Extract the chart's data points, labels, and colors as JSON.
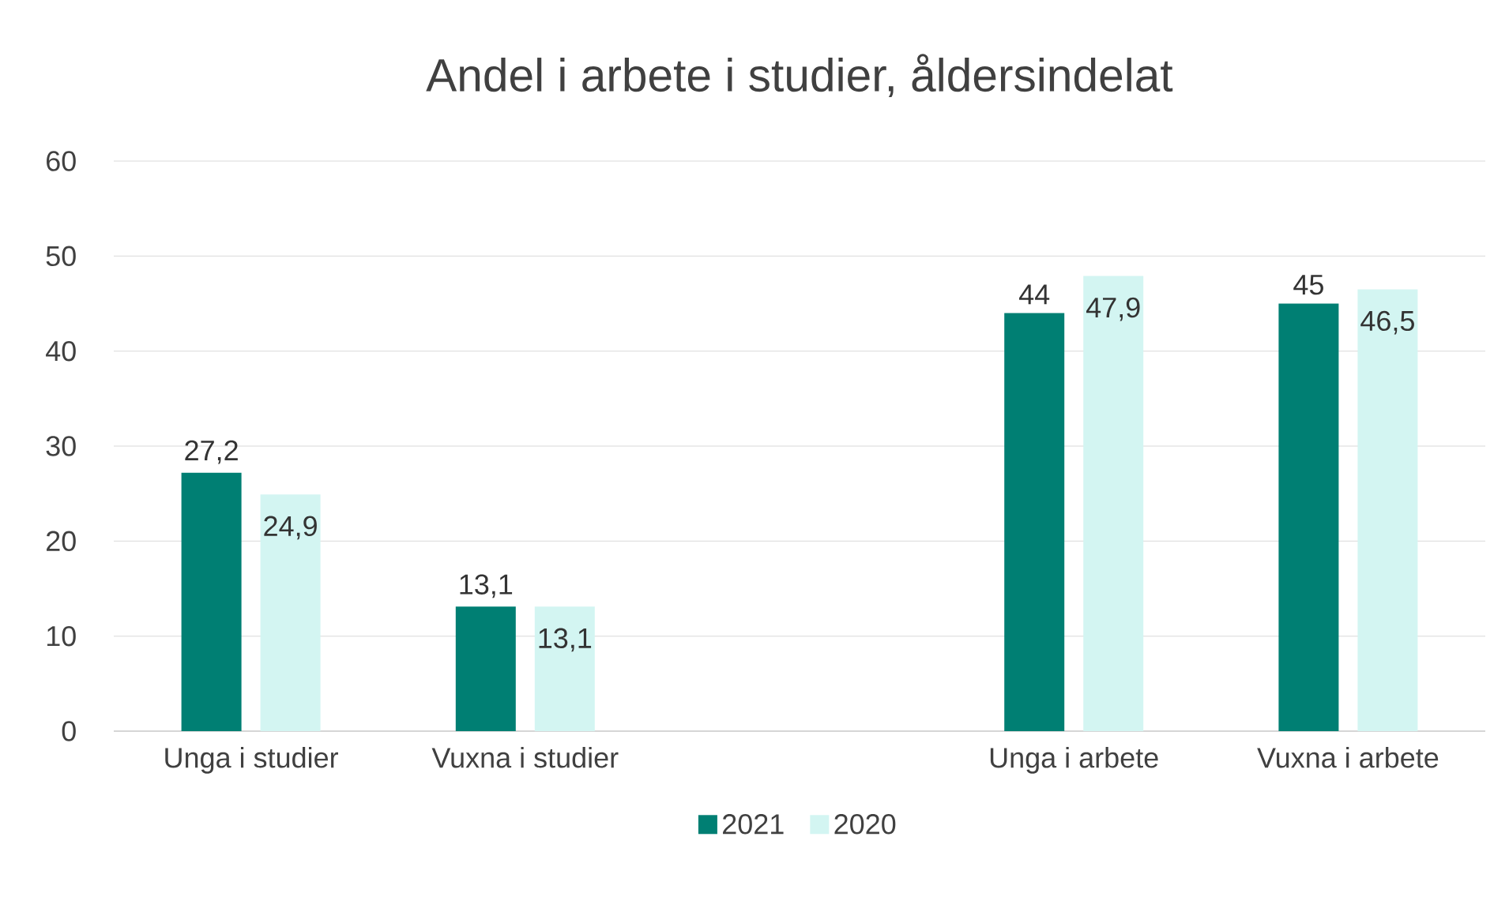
{
  "chart_data": {
    "type": "bar",
    "title": "Andel i arbete i studier, åldersindelat",
    "categories": [
      "Unga i studier",
      "Vuxna i studier",
      null,
      "Unga i arbete",
      "Vuxna i arbete"
    ],
    "series": [
      {
        "name": "2021",
        "color": "#007f73",
        "values": [
          27.2,
          13.1,
          null,
          44,
          45
        ],
        "value_labels": [
          "27,2",
          "13,1",
          null,
          "44",
          "45"
        ]
      },
      {
        "name": "2020",
        "color": "#d3f5f2",
        "values": [
          24.9,
          13.1,
          null,
          47.9,
          46.5
        ],
        "value_labels": [
          "24,9",
          "13,1",
          null,
          "47,9",
          "46,5"
        ]
      }
    ],
    "ylim": [
      0,
      60
    ],
    "yticks": [
      0,
      10,
      20,
      30,
      40,
      50,
      60
    ],
    "grid": "y",
    "legend": "bottom"
  }
}
